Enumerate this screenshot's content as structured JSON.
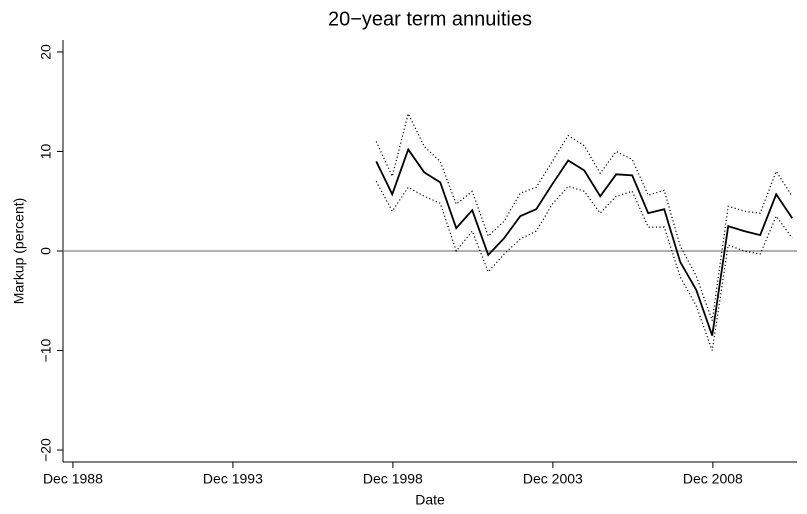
{
  "chart_data": {
    "type": "line",
    "title": "20−year term annuities",
    "xlabel": "Date",
    "ylabel": "Markup (percent)",
    "x": [
      1998.4,
      1998.9,
      1999.4,
      1999.9,
      2000.4,
      2000.9,
      2001.4,
      2001.9,
      2002.4,
      2002.9,
      2003.4,
      2003.9,
      2004.4,
      2004.9,
      2005.4,
      2005.9,
      2006.4,
      2006.9,
      2007.4,
      2007.9,
      2008.4,
      2008.9,
      2009.4,
      2009.9,
      2010.4,
      2010.9,
      2011.4
    ],
    "series": [
      {
        "color": "#000000",
        "style": "solid",
        "values": [
          9.0,
          5.7,
          10.2,
          7.9,
          6.9,
          2.3,
          4.1,
          -0.4,
          1.3,
          3.5,
          4.2,
          6.7,
          9.1,
          8.1,
          5.5,
          7.7,
          7.6,
          3.8,
          4.2,
          -1.1,
          -3.9,
          -8.5,
          2.5,
          2.0,
          1.6,
          5.7,
          3.3
        ]
      },
      {
        "color": "#000000",
        "style": "dotted",
        "values": [
          11.0,
          7.5,
          13.8,
          10.5,
          9.0,
          4.7,
          6.0,
          1.5,
          3.0,
          5.8,
          6.4,
          9.0,
          11.6,
          10.6,
          7.8,
          10.0,
          9.2,
          5.6,
          6.1,
          0.5,
          -2.5,
          -7.0,
          4.5,
          4.0,
          3.8,
          8.0,
          5.5
        ]
      },
      {
        "color": "#000000",
        "style": "dotted",
        "values": [
          7.0,
          4.0,
          6.4,
          5.5,
          4.8,
          0.0,
          2.0,
          -2.1,
          -0.3,
          1.2,
          2.0,
          4.7,
          6.5,
          6.0,
          3.8,
          5.5,
          6.0,
          2.4,
          2.4,
          -2.6,
          -5.5,
          -10.0,
          0.6,
          0.0,
          -0.3,
          3.5,
          1.3
        ]
      }
    ],
    "xlim": [
      1988.61,
      2011.55
    ],
    "xticks": [
      {
        "value": 1988.92,
        "label": "Dec 1988"
      },
      {
        "value": 1993.92,
        "label": "Dec 1993"
      },
      {
        "value": 1998.92,
        "label": "Dec 1998"
      },
      {
        "value": 2003.92,
        "label": "Dec 2003"
      },
      {
        "value": 2008.92,
        "label": "Dec 2008"
      }
    ],
    "ylim": [
      -21.2,
      21.2
    ],
    "yticks": [
      {
        "value": -20,
        "label": "−20"
      },
      {
        "value": -10,
        "label": "−10"
      },
      0,
      10,
      20
    ],
    "hline": 0,
    "hline_color": "#808080"
  }
}
